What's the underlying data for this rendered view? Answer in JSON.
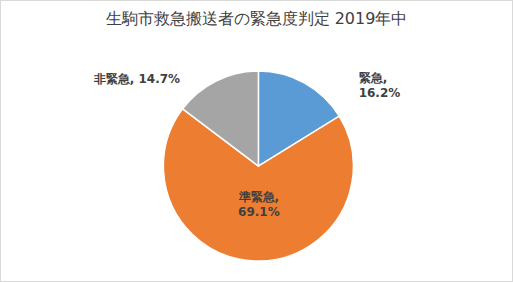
{
  "chart_data": {
    "type": "pie",
    "title": "生駒市救急搬送者の緊急度判定 2019年中",
    "categories": [
      "緊急",
      "準緊急",
      "非緊急"
    ],
    "values": [
      16.2,
      69.1,
      14.7
    ],
    "colors": [
      "#5b9bd5",
      "#ed7d31",
      "#a5a5a5"
    ],
    "data_labels": true,
    "value_labels": [
      "緊急, 16.2%",
      "準緊急, 69.1%",
      "非緊急, 14.7%"
    ]
  }
}
